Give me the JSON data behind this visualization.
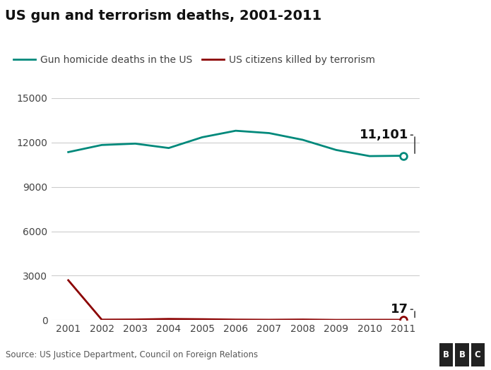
{
  "title": "US gun and terrorism deaths, 2001-2011",
  "years": [
    2001,
    2002,
    2003,
    2004,
    2005,
    2006,
    2007,
    2008,
    2009,
    2010,
    2011
  ],
  "gun_deaths": [
    11348,
    11829,
    11920,
    11624,
    12352,
    12791,
    12632,
    12179,
    11493,
    11078,
    11101
  ],
  "terrorism_deaths": [
    2689,
    25,
    35,
    74,
    56,
    28,
    17,
    33,
    9,
    15,
    17
  ],
  "gun_color": "#00897B",
  "terrorism_color": "#8B0000",
  "gun_label": "Gun homicide deaths in the US",
  "terrorism_label": "US citizens killed by terrorism",
  "ylim": [
    0,
    15000
  ],
  "yticks": [
    0,
    3000,
    6000,
    9000,
    12000,
    15000
  ],
  "source_text": "Source: US Justice Department, Council on Foreign Relations",
  "annotation_gun": "11,101",
  "annotation_terror": "17",
  "bg_color": "#ffffff",
  "plot_bg_color": "#ffffff",
  "grid_color": "#cccccc",
  "footer_bg": "#e0e0e0",
  "title_fontsize": 14,
  "legend_fontsize": 10,
  "tick_fontsize": 10,
  "annotation_fontsize": 13
}
